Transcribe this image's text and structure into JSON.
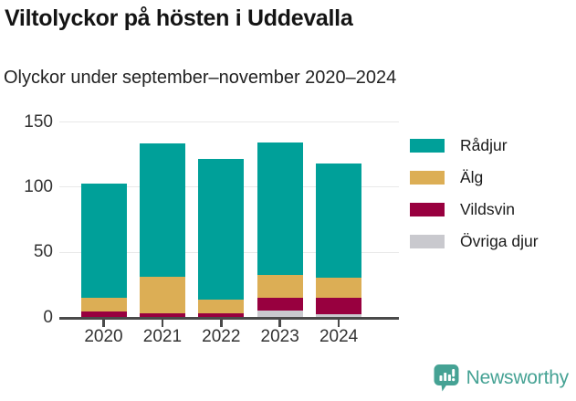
{
  "title": "Viltolyckor på hösten i Uddevalla",
  "subtitle": "Olyckor under september–november 2020–2024",
  "colors": {
    "radjur": "#00A099",
    "alg": "#DCAE55",
    "vildsvin": "#98003F",
    "ovriga_djur": "#C9C9CE",
    "axis": "#4a4a4a",
    "grid": "#e8e8e8",
    "brand_teal": "#45A294"
  },
  "chart_data": {
    "type": "bar",
    "stacked": true,
    "title": "Viltolyckor på hösten i Uddevalla",
    "subtitle": "Olyckor under september–november 2020–2024",
    "categories": [
      "2020",
      "2021",
      "2022",
      "2023",
      "2024"
    ],
    "series": [
      {
        "name": "Rådjur",
        "color": "#00A099",
        "values": [
          87,
          102,
          108,
          102,
          88
        ]
      },
      {
        "name": "Älg",
        "color": "#DCAE55",
        "values": [
          11,
          28,
          10,
          17,
          15
        ]
      },
      {
        "name": "Vildsvin",
        "color": "#98003F",
        "values": [
          4,
          3,
          3,
          10,
          13
        ]
      },
      {
        "name": "Övriga djur",
        "color": "#C9C9CE",
        "values": [
          0,
          0,
          0,
          5,
          2
        ]
      }
    ],
    "stack_order_bottom_to_top": [
      "Övriga djur",
      "Vildsvin",
      "Älg",
      "Rådjur"
    ],
    "totals": [
      102,
      133,
      121,
      134,
      118
    ],
    "xlabel": "",
    "ylabel": "",
    "ylim": [
      0,
      150
    ],
    "yticks": [
      0,
      50,
      100,
      150
    ],
    "grid": true,
    "legend_position": "right"
  },
  "footer": {
    "brand": "Newsworthy"
  }
}
